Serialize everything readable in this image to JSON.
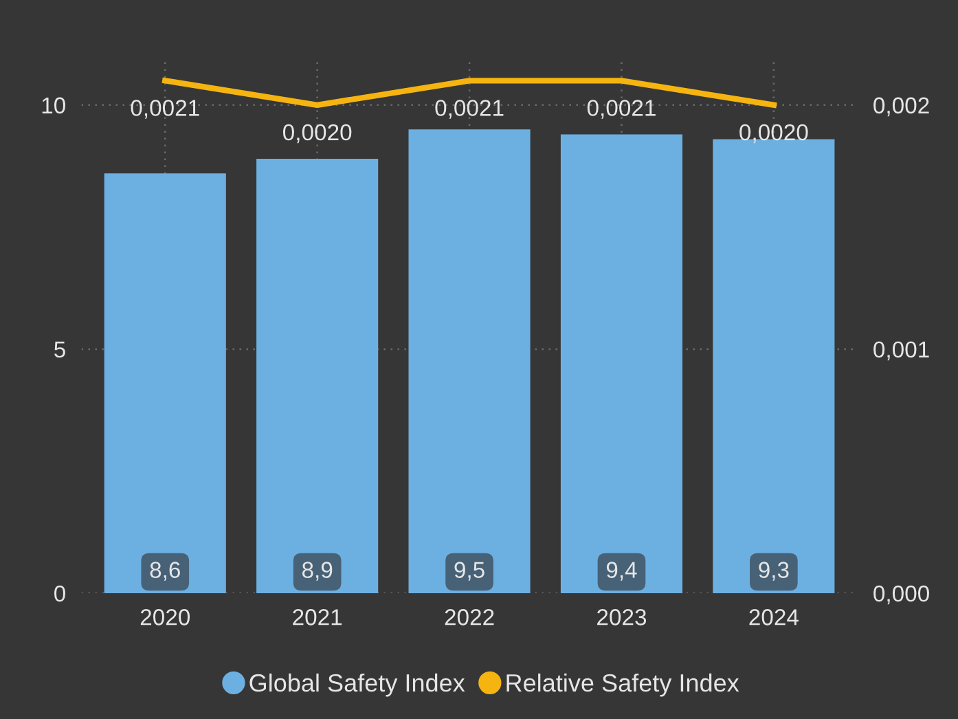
{
  "chart_data": {
    "type": "bar",
    "categories": [
      "2020",
      "2021",
      "2022",
      "2023",
      "2024"
    ],
    "series": [
      {
        "name": "Global Safety Index",
        "color": "#6cb0e2",
        "values": [
          8.6,
          8.9,
          9.5,
          9.4,
          9.3
        ],
        "value_labels": [
          "8,6",
          "8,9",
          "9,5",
          "9,4",
          "9,3"
        ]
      },
      {
        "name": "Relative Safety Index",
        "type": "line",
        "axis": "y2",
        "color": "#f5b40f",
        "values": [
          0.0021,
          0.002,
          0.0021,
          0.0021,
          0.002
        ],
        "value_labels": [
          "0,0021",
          "0,0020",
          "0,0021",
          "0,0021",
          "0,0020"
        ]
      }
    ],
    "ylim": [
      0,
      10.9
    ],
    "yticks": [
      0,
      5,
      10
    ],
    "y2lim": [
      0,
      0.00218
    ],
    "y2ticks": [
      {
        "value": 0,
        "label": "0,000"
      },
      {
        "value": 0.001,
        "label": "0,001"
      },
      {
        "value": 0.002,
        "label": "0,002"
      }
    ],
    "grid": true,
    "legend": "bottom",
    "marker": "none",
    "line_style": "solid"
  }
}
